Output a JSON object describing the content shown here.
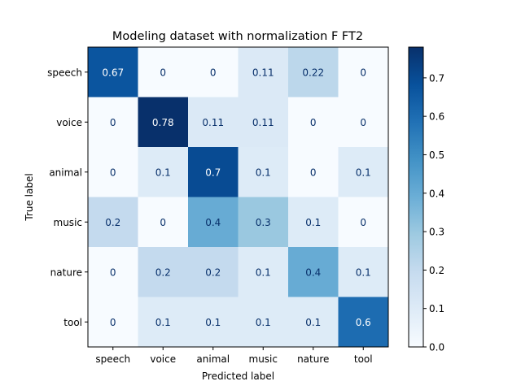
{
  "chart_data": {
    "type": "heatmap",
    "title": "Modeling dataset with normalization F FT2",
    "xlabel": "Predicted label",
    "ylabel": "True label",
    "x_categories": [
      "speech",
      "voice",
      "animal",
      "music",
      "nature",
      "tool"
    ],
    "y_categories": [
      "speech",
      "voice",
      "animal",
      "music",
      "nature",
      "tool"
    ],
    "values": [
      [
        0.67,
        0,
        0,
        0.11,
        0.22,
        0
      ],
      [
        0,
        0.78,
        0.11,
        0.11,
        0,
        0
      ],
      [
        0,
        0.1,
        0.7,
        0.1,
        0,
        0.1
      ],
      [
        0.2,
        0,
        0.4,
        0.3,
        0.1,
        0
      ],
      [
        0,
        0.2,
        0.2,
        0.1,
        0.4,
        0.1
      ],
      [
        0,
        0.1,
        0.1,
        0.1,
        0.1,
        0.6
      ]
    ],
    "labels": [
      [
        "0.67",
        "0",
        "0",
        "0.11",
        "0.22",
        "0"
      ],
      [
        "0",
        "0.78",
        "0.11",
        "0.11",
        "0",
        "0"
      ],
      [
        "0",
        "0.1",
        "0.7",
        "0.1",
        "0",
        "0.1"
      ],
      [
        "0.2",
        "0",
        "0.4",
        "0.3",
        "0.1",
        "0"
      ],
      [
        "0",
        "0.2",
        "0.2",
        "0.1",
        "0.4",
        "0.1"
      ],
      [
        "0",
        "0.1",
        "0.1",
        "0.1",
        "0.1",
        "0.6"
      ]
    ],
    "colormap": "Blues",
    "vmin": 0,
    "vmax": 0.78,
    "colorbar": {
      "ticks": [
        0.0,
        0.1,
        0.2,
        0.3,
        0.4,
        0.5,
        0.6,
        0.7
      ],
      "tick_labels": [
        "0.0",
        "0.1",
        "0.2",
        "0.3",
        "0.4",
        "0.5",
        "0.6",
        "0.7"
      ]
    },
    "grid": false
  }
}
